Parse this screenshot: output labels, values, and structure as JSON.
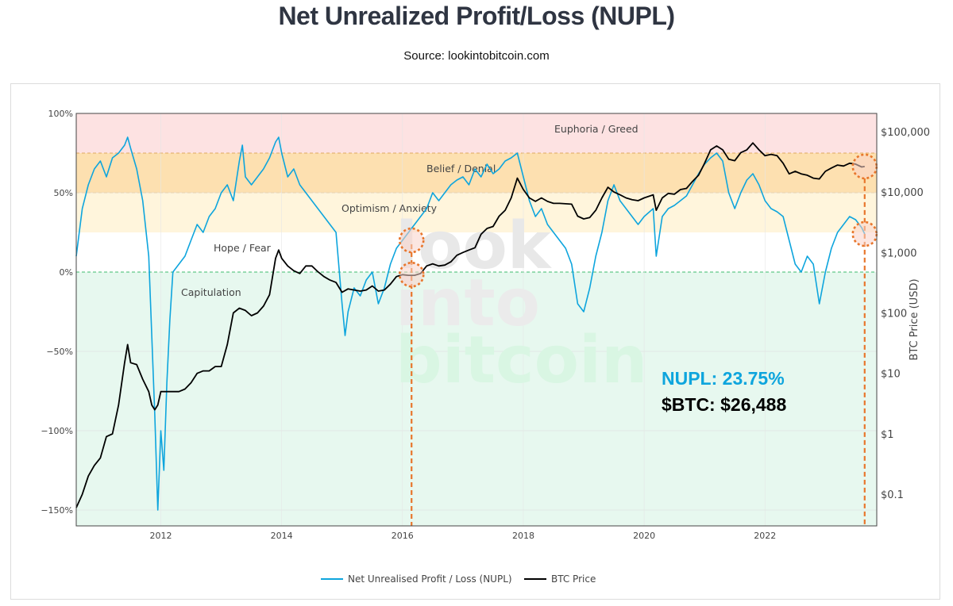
{
  "header": {
    "title": "Net Unrealized Profit/Loss (NUPL)",
    "source": "Source: lookintobitcoin.com"
  },
  "annotation": {
    "nupl": "NUPL: 23.75%",
    "btc": "$BTC: $26,488",
    "nupl_color": "#0ea5dd",
    "btc_color": "#000000",
    "marker_color": "#e8762c"
  },
  "watermark": [
    "look",
    "into",
    "bitcoin"
  ],
  "chart_data": {
    "type": "line",
    "x_ticks": [
      "2012",
      "2014",
      "2016",
      "2018",
      "2020",
      "2022"
    ],
    "y_left_ticks": [
      "100%",
      "50%",
      "0%",
      "−50%",
      "−100%",
      "−150%"
    ],
    "y_right_label": "BTC Price (USD)",
    "y_right_ticks": [
      "$100,000",
      "$10,000",
      "$1,000",
      "$100",
      "$10",
      "$1",
      "$0.1"
    ],
    "y_left_range": [
      -160,
      100
    ],
    "y_right_scale": "log",
    "zones": [
      {
        "label": "Euphoria / Greed",
        "from": 75,
        "to": 100,
        "color": "#fde2e2"
      },
      {
        "label": "Belief / Denial",
        "from": 50,
        "to": 75,
        "color": "#fde0b0"
      },
      {
        "label": "Optimism / Anxiety",
        "from": 25,
        "to": 50,
        "color": "#fff5dc"
      },
      {
        "label": "Hope / Fear",
        "from": 0,
        "to": 25,
        "color": "#ffffff"
      },
      {
        "label": "Capitulation",
        "from": -160,
        "to": 0,
        "color": "#e7f8ef"
      }
    ],
    "legend": [
      {
        "name": "Net Unrealised Profit / Loss (NUPL)",
        "color": "#0ea5dd"
      },
      {
        "name": "BTC Price",
        "color": "#000000"
      }
    ],
    "series": [
      {
        "name": "Net Unrealised Profit / Loss (NUPL)",
        "axis": "left",
        "color": "#0ea5dd",
        "points": [
          [
            2010.6,
            10
          ],
          [
            2010.7,
            40
          ],
          [
            2010.8,
            55
          ],
          [
            2010.9,
            65
          ],
          [
            2011.0,
            70
          ],
          [
            2011.1,
            60
          ],
          [
            2011.2,
            72
          ],
          [
            2011.3,
            75
          ],
          [
            2011.4,
            80
          ],
          [
            2011.45,
            85
          ],
          [
            2011.5,
            78
          ],
          [
            2011.6,
            65
          ],
          [
            2011.7,
            45
          ],
          [
            2011.8,
            10
          ],
          [
            2011.85,
            -40
          ],
          [
            2011.9,
            -90
          ],
          [
            2011.95,
            -150
          ],
          [
            2012.0,
            -100
          ],
          [
            2012.05,
            -125
          ],
          [
            2012.1,
            -70
          ],
          [
            2012.15,
            -30
          ],
          [
            2012.2,
            0
          ],
          [
            2012.3,
            5
          ],
          [
            2012.4,
            10
          ],
          [
            2012.5,
            20
          ],
          [
            2012.6,
            30
          ],
          [
            2012.7,
            25
          ],
          [
            2012.8,
            35
          ],
          [
            2012.9,
            40
          ],
          [
            2013.0,
            50
          ],
          [
            2013.1,
            55
          ],
          [
            2013.2,
            45
          ],
          [
            2013.3,
            70
          ],
          [
            2013.35,
            80
          ],
          [
            2013.4,
            60
          ],
          [
            2013.5,
            55
          ],
          [
            2013.6,
            60
          ],
          [
            2013.7,
            65
          ],
          [
            2013.8,
            72
          ],
          [
            2013.9,
            82
          ],
          [
            2013.95,
            85
          ],
          [
            2014.0,
            75
          ],
          [
            2014.1,
            60
          ],
          [
            2014.2,
            65
          ],
          [
            2014.3,
            55
          ],
          [
            2014.4,
            50
          ],
          [
            2014.5,
            45
          ],
          [
            2014.6,
            40
          ],
          [
            2014.7,
            35
          ],
          [
            2014.8,
            30
          ],
          [
            2014.9,
            25
          ],
          [
            2015.0,
            -20
          ],
          [
            2015.05,
            -40
          ],
          [
            2015.1,
            -25
          ],
          [
            2015.2,
            -10
          ],
          [
            2015.3,
            -15
          ],
          [
            2015.4,
            -5
          ],
          [
            2015.5,
            0
          ],
          [
            2015.6,
            -20
          ],
          [
            2015.7,
            -10
          ],
          [
            2015.8,
            5
          ],
          [
            2015.9,
            15
          ],
          [
            2016.0,
            20
          ],
          [
            2016.1,
            25
          ],
          [
            2016.2,
            30
          ],
          [
            2016.3,
            35
          ],
          [
            2016.4,
            40
          ],
          [
            2016.5,
            50
          ],
          [
            2016.6,
            45
          ],
          [
            2016.7,
            50
          ],
          [
            2016.8,
            55
          ],
          [
            2016.9,
            58
          ],
          [
            2017.0,
            60
          ],
          [
            2017.1,
            55
          ],
          [
            2017.2,
            65
          ],
          [
            2017.3,
            60
          ],
          [
            2017.4,
            68
          ],
          [
            2017.5,
            62
          ],
          [
            2017.6,
            65
          ],
          [
            2017.7,
            70
          ],
          [
            2017.8,
            72
          ],
          [
            2017.9,
            75
          ],
          [
            2018.0,
            60
          ],
          [
            2018.1,
            45
          ],
          [
            2018.2,
            35
          ],
          [
            2018.3,
            40
          ],
          [
            2018.4,
            30
          ],
          [
            2018.5,
            25
          ],
          [
            2018.6,
            20
          ],
          [
            2018.7,
            15
          ],
          [
            2018.8,
            5
          ],
          [
            2018.9,
            -20
          ],
          [
            2019.0,
            -25
          ],
          [
            2019.1,
            -10
          ],
          [
            2019.2,
            10
          ],
          [
            2019.3,
            25
          ],
          [
            2019.4,
            45
          ],
          [
            2019.5,
            55
          ],
          [
            2019.6,
            45
          ],
          [
            2019.7,
            40
          ],
          [
            2019.8,
            35
          ],
          [
            2019.9,
            30
          ],
          [
            2020.0,
            35
          ],
          [
            2020.15,
            40
          ],
          [
            2020.2,
            10
          ],
          [
            2020.3,
            35
          ],
          [
            2020.4,
            40
          ],
          [
            2020.5,
            42
          ],
          [
            2020.6,
            45
          ],
          [
            2020.7,
            48
          ],
          [
            2020.8,
            55
          ],
          [
            2020.9,
            62
          ],
          [
            2021.0,
            68
          ],
          [
            2021.1,
            72
          ],
          [
            2021.2,
            75
          ],
          [
            2021.3,
            70
          ],
          [
            2021.4,
            50
          ],
          [
            2021.5,
            40
          ],
          [
            2021.6,
            50
          ],
          [
            2021.7,
            58
          ],
          [
            2021.8,
            62
          ],
          [
            2021.9,
            55
          ],
          [
            2022.0,
            45
          ],
          [
            2022.1,
            40
          ],
          [
            2022.2,
            38
          ],
          [
            2022.3,
            35
          ],
          [
            2022.4,
            20
          ],
          [
            2022.5,
            5
          ],
          [
            2022.6,
            0
          ],
          [
            2022.7,
            10
          ],
          [
            2022.8,
            5
          ],
          [
            2022.9,
            -20
          ],
          [
            2023.0,
            0
          ],
          [
            2023.1,
            15
          ],
          [
            2023.2,
            25
          ],
          [
            2023.3,
            30
          ],
          [
            2023.4,
            35
          ],
          [
            2023.5,
            33
          ],
          [
            2023.6,
            28
          ],
          [
            2023.65,
            24
          ]
        ]
      },
      {
        "name": "BTC Price",
        "axis": "right",
        "color": "#000000",
        "points": [
          [
            2010.6,
            0.06
          ],
          [
            2010.7,
            0.1
          ],
          [
            2010.8,
            0.2
          ],
          [
            2010.9,
            0.3
          ],
          [
            2011.0,
            0.4
          ],
          [
            2011.1,
            0.9
          ],
          [
            2011.2,
            1
          ],
          [
            2011.3,
            3
          ],
          [
            2011.4,
            15
          ],
          [
            2011.45,
            30
          ],
          [
            2011.5,
            15
          ],
          [
            2011.6,
            14
          ],
          [
            2011.7,
            8
          ],
          [
            2011.8,
            5
          ],
          [
            2011.85,
            3
          ],
          [
            2011.9,
            2.5
          ],
          [
            2011.95,
            3
          ],
          [
            2012.0,
            5
          ],
          [
            2012.1,
            5
          ],
          [
            2012.2,
            5
          ],
          [
            2012.3,
            5
          ],
          [
            2012.4,
            5.5
          ],
          [
            2012.5,
            7
          ],
          [
            2012.6,
            10
          ],
          [
            2012.7,
            11
          ],
          [
            2012.8,
            11
          ],
          [
            2012.9,
            13
          ],
          [
            2013.0,
            13
          ],
          [
            2013.1,
            30
          ],
          [
            2013.2,
            100
          ],
          [
            2013.3,
            120
          ],
          [
            2013.4,
            110
          ],
          [
            2013.5,
            90
          ],
          [
            2013.6,
            100
          ],
          [
            2013.7,
            130
          ],
          [
            2013.8,
            200
          ],
          [
            2013.9,
            800
          ],
          [
            2013.95,
            1100
          ],
          [
            2014.0,
            800
          ],
          [
            2014.1,
            600
          ],
          [
            2014.2,
            500
          ],
          [
            2014.3,
            450
          ],
          [
            2014.4,
            600
          ],
          [
            2014.5,
            600
          ],
          [
            2014.6,
            480
          ],
          [
            2014.7,
            400
          ],
          [
            2014.8,
            350
          ],
          [
            2014.9,
            320
          ],
          [
            2015.0,
            220
          ],
          [
            2015.1,
            250
          ],
          [
            2015.2,
            240
          ],
          [
            2015.3,
            230
          ],
          [
            2015.4,
            240
          ],
          [
            2015.5,
            280
          ],
          [
            2015.6,
            230
          ],
          [
            2015.7,
            240
          ],
          [
            2015.8,
            300
          ],
          [
            2015.9,
            400
          ],
          [
            2016.0,
            430
          ],
          [
            2016.1,
            420
          ],
          [
            2016.2,
            420
          ],
          [
            2016.3,
            450
          ],
          [
            2016.4,
            600
          ],
          [
            2016.5,
            650
          ],
          [
            2016.6,
            600
          ],
          [
            2016.7,
            620
          ],
          [
            2016.8,
            700
          ],
          [
            2016.9,
            900
          ],
          [
            2017.0,
            1000
          ],
          [
            2017.1,
            1100
          ],
          [
            2017.2,
            1200
          ],
          [
            2017.3,
            2000
          ],
          [
            2017.4,
            2500
          ],
          [
            2017.5,
            2700
          ],
          [
            2017.6,
            4000
          ],
          [
            2017.7,
            5000
          ],
          [
            2017.8,
            8000
          ],
          [
            2017.9,
            17000
          ],
          [
            2018.0,
            11000
          ],
          [
            2018.1,
            8000
          ],
          [
            2018.2,
            7000
          ],
          [
            2018.3,
            8000
          ],
          [
            2018.4,
            7000
          ],
          [
            2018.5,
            6500
          ],
          [
            2018.6,
            6500
          ],
          [
            2018.7,
            6400
          ],
          [
            2018.8,
            6300
          ],
          [
            2018.9,
            4000
          ],
          [
            2019.0,
            3600
          ],
          [
            2019.1,
            3800
          ],
          [
            2019.2,
            5000
          ],
          [
            2019.3,
            8000
          ],
          [
            2019.4,
            12000
          ],
          [
            2019.5,
            10000
          ],
          [
            2019.6,
            9000
          ],
          [
            2019.7,
            8000
          ],
          [
            2019.8,
            7500
          ],
          [
            2019.9,
            7200
          ],
          [
            2020.0,
            8000
          ],
          [
            2020.15,
            9000
          ],
          [
            2020.2,
            5000
          ],
          [
            2020.3,
            8000
          ],
          [
            2020.4,
            9500
          ],
          [
            2020.5,
            9200
          ],
          [
            2020.6,
            11000
          ],
          [
            2020.7,
            11500
          ],
          [
            2020.8,
            15000
          ],
          [
            2020.9,
            19000
          ],
          [
            2021.0,
            30000
          ],
          [
            2021.1,
            50000
          ],
          [
            2021.2,
            58000
          ],
          [
            2021.3,
            50000
          ],
          [
            2021.4,
            35000
          ],
          [
            2021.5,
            33000
          ],
          [
            2021.6,
            45000
          ],
          [
            2021.7,
            50000
          ],
          [
            2021.8,
            65000
          ],
          [
            2021.9,
            50000
          ],
          [
            2022.0,
            40000
          ],
          [
            2022.1,
            42000
          ],
          [
            2022.2,
            40000
          ],
          [
            2022.3,
            30000
          ],
          [
            2022.4,
            20000
          ],
          [
            2022.5,
            22000
          ],
          [
            2022.6,
            20000
          ],
          [
            2022.7,
            19000
          ],
          [
            2022.8,
            17000
          ],
          [
            2022.9,
            16500
          ],
          [
            2023.0,
            22000
          ],
          [
            2023.1,
            25000
          ],
          [
            2023.2,
            28000
          ],
          [
            2023.3,
            27000
          ],
          [
            2023.4,
            30000
          ],
          [
            2023.5,
            29000
          ],
          [
            2023.6,
            26000
          ],
          [
            2023.65,
            26488
          ]
        ]
      }
    ]
  }
}
